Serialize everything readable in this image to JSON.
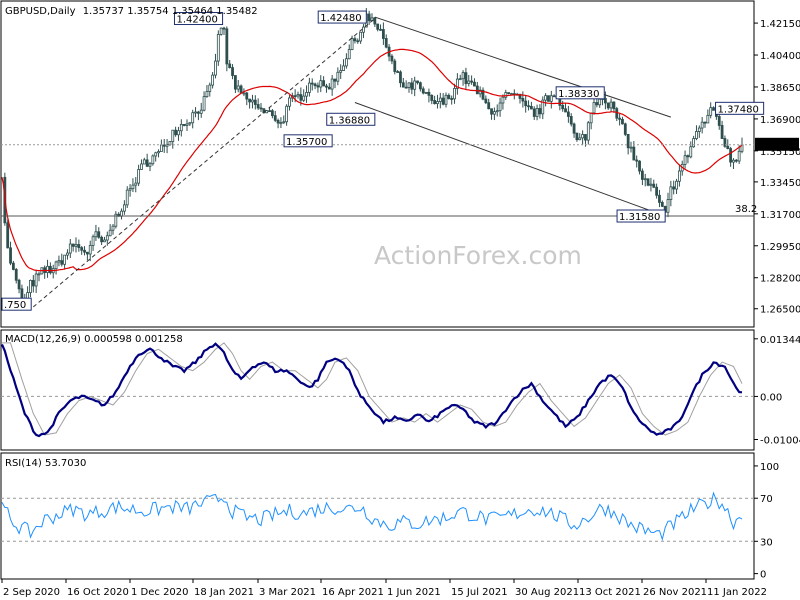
{
  "header": {
    "symbol": "GBPUSD,Daily",
    "ohlc": "1.35737 1.35754 1.35464 1.35482"
  },
  "watermark": "ActionForex.com",
  "colors": {
    "candle": "#2f4f4f",
    "ma": "#dd0000",
    "trend": "#333333",
    "macd": "#000080",
    "signal": "#a0a0a0",
    "rsi": "#1e90ff",
    "grid_dash": "#999999",
    "price_label_bg": "#000000",
    "price_label_fg": "#ffffff"
  },
  "price_axis": {
    "ticks": [
      "1.42150",
      "1.40400",
      "1.38650",
      "1.36900",
      "1.35150",
      "1.33450",
      "1.31700",
      "1.29950",
      "1.28200",
      "1.26500"
    ],
    "current_price": "1.35482",
    "horizontal_line": 1.3158,
    "fib_label": "38.2"
  },
  "annotations": [
    {
      "text": "1.42400",
      "price": 1.424
    },
    {
      "text": "1.42480",
      "price": 1.4248
    },
    {
      "text": "1.36880",
      "price": 1.3688
    },
    {
      "text": "1.35700",
      "price": 1.357
    },
    {
      "text": "1.38330",
      "price": 1.3833
    },
    {
      "text": "1.37480",
      "price": 1.3748
    },
    {
      "text": "1.31580",
      "price": 1.3158
    },
    {
      "text": ".750",
      "price": 1.2675
    }
  ],
  "macd_panel": {
    "label": "MACD(12,26,9) 0.000598 0.001258",
    "ticks": [
      "0.013448",
      "0.00",
      "-0.010047"
    ]
  },
  "rsi_panel": {
    "label": "RSI(14) 53.7030",
    "ticks": [
      "100",
      "70",
      "30",
      "0"
    ]
  },
  "date_axis": {
    "labels": [
      "2 Sep 2020",
      "16 Oct 2020",
      "1 Dec 2020",
      "18 Jan 2021",
      "3 Mar 2021",
      "16 Apr 2021",
      "1 Jun 2021",
      "15 Jul 2021",
      "30 Aug 2021",
      "13 Oct 2021",
      "26 Nov 2021",
      "11 Jan 2022"
    ]
  },
  "chart_data": [
    {
      "type": "candlestick",
      "title": "GBPUSD,Daily",
      "ylim": [
        1.265,
        1.43
      ],
      "dates": [
        "2 Sep 2020",
        "16 Oct 2020",
        "1 Dec 2020",
        "18 Jan 2021",
        "3 Mar 2021",
        "16 Apr 2021",
        "1 Jun 2021",
        "15 Jul 2021",
        "30 Aug 2021",
        "13 Oct 2021",
        "26 Nov 2021",
        "11 Jan 2022"
      ],
      "close_path": [
        [
          0,
          1.34
        ],
        [
          3,
          1.3
        ],
        [
          8,
          1.285
        ],
        [
          12,
          1.274
        ],
        [
          16,
          1.2675
        ],
        [
          20,
          1.278
        ],
        [
          28,
          1.285
        ],
        [
          38,
          1.288
        ],
        [
          50,
          1.3
        ],
        [
          60,
          1.296
        ],
        [
          66,
          1.305
        ],
        [
          72,
          1.3
        ],
        [
          80,
          1.315
        ],
        [
          90,
          1.33
        ],
        [
          100,
          1.345
        ],
        [
          110,
          1.35
        ],
        [
          120,
          1.362
        ],
        [
          130,
          1.368
        ],
        [
          140,
          1.376
        ],
        [
          147,
          1.386
        ],
        [
          152,
          1.413
        ],
        [
          155,
          1.424
        ],
        [
          158,
          1.4
        ],
        [
          165,
          1.385
        ],
        [
          172,
          1.379
        ],
        [
          178,
          1.377
        ],
        [
          184,
          1.372
        ],
        [
          190,
          1.372
        ],
        [
          196,
          1.366
        ],
        [
          202,
          1.378
        ],
        [
          210,
          1.382
        ],
        [
          218,
          1.39
        ],
        [
          226,
          1.386
        ],
        [
          232,
          1.389
        ],
        [
          240,
          1.4
        ],
        [
          246,
          1.41
        ],
        [
          252,
          1.417
        ],
        [
          256,
          1.4248
        ],
        [
          262,
          1.42
        ],
        [
          266,
          1.418
        ],
        [
          272,
          1.402
        ],
        [
          278,
          1.392
        ],
        [
          284,
          1.385
        ],
        [
          290,
          1.388
        ],
        [
          296,
          1.383
        ],
        [
          302,
          1.378
        ],
        [
          310,
          1.378
        ],
        [
          316,
          1.383
        ],
        [
          322,
          1.393
        ],
        [
          328,
          1.389
        ],
        [
          336,
          1.382
        ],
        [
          342,
          1.374
        ],
        [
          348,
          1.375
        ],
        [
          355,
          1.382
        ],
        [
          362,
          1.38
        ],
        [
          369,
          1.374
        ],
        [
          376,
          1.372
        ],
        [
          382,
          1.379
        ],
        [
          388,
          1.3833
        ],
        [
          394,
          1.377
        ],
        [
          400,
          1.365
        ],
        [
          404,
          1.356
        ],
        [
          410,
          1.36
        ],
        [
          416,
          1.378
        ],
        [
          422,
          1.382
        ],
        [
          428,
          1.376
        ],
        [
          434,
          1.367
        ],
        [
          440,
          1.356
        ],
        [
          446,
          1.344
        ],
        [
          452,
          1.334
        ],
        [
          458,
          1.33
        ],
        [
          462,
          1.322
        ],
        [
          466,
          1.3158
        ],
        [
          470,
          1.33
        ],
        [
          476,
          1.34
        ],
        [
          482,
          1.35
        ],
        [
          488,
          1.362
        ],
        [
          494,
          1.368
        ],
        [
          500,
          1.3748
        ],
        [
          504,
          1.365
        ],
        [
          508,
          1.355
        ],
        [
          512,
          1.346
        ],
        [
          516,
          1.348
        ],
        [
          520,
          1.35482
        ]
      ],
      "series": [
        {
          "name": "",
          "kind": "candles"
        },
        {
          "name": "",
          "kind": "moving_average"
        },
        {
          "name": "",
          "kind": "trendlines"
        }
      ],
      "levels": [
        1.424,
        1.4248,
        1.3688,
        1.357,
        1.3833,
        1.3748,
        1.3158
      ],
      "last": 1.35482
    },
    {
      "type": "line",
      "title": "MACD(12,26,9) 0.000598 0.001258",
      "ylim": [
        -0.010047,
        0.013448
      ],
      "series": [
        {
          "name": "",
          "values_path": [
            [
              0,
              0.0125
            ],
            [
              8,
              0.004
            ],
            [
              16,
              -0.004
            ],
            [
              24,
              -0.009
            ],
            [
              32,
              -0.0085
            ],
            [
              40,
              -0.004
            ],
            [
              48,
              -0.001
            ],
            [
              56,
              0.0
            ],
            [
              64,
              -0.001
            ],
            [
              72,
              -0.002
            ],
            [
              80,
              0.001
            ],
            [
              88,
              0.006
            ],
            [
              96,
              0.01
            ],
            [
              104,
              0.011
            ],
            [
              112,
              0.009
            ],
            [
              120,
              0.007
            ],
            [
              128,
              0.006
            ],
            [
              136,
              0.008
            ],
            [
              144,
              0.011
            ],
            [
              150,
              0.0125
            ],
            [
              156,
              0.01
            ],
            [
              162,
              0.006
            ],
            [
              168,
              0.004
            ],
            [
              176,
              0.007
            ],
            [
              184,
              0.008
            ],
            [
              192,
              0.006
            ],
            [
              200,
              0.006
            ],
            [
              208,
              0.004
            ],
            [
              216,
              0.002
            ],
            [
              222,
              0.004
            ],
            [
              228,
              0.008
            ],
            [
              236,
              0.009
            ],
            [
              244,
              0.006
            ],
            [
              252,
              0.0
            ],
            [
              260,
              -0.003
            ],
            [
              268,
              -0.006
            ],
            [
              276,
              -0.005
            ],
            [
              284,
              -0.006
            ],
            [
              292,
              -0.004
            ],
            [
              300,
              -0.006
            ],
            [
              308,
              -0.004
            ],
            [
              316,
              -0.002
            ],
            [
              324,
              -0.003
            ],
            [
              332,
              -0.006
            ],
            [
              340,
              -0.007
            ],
            [
              348,
              -0.006
            ],
            [
              356,
              -0.002
            ],
            [
              364,
              0.001
            ],
            [
              372,
              0.003
            ],
            [
              380,
              -0.001
            ],
            [
              388,
              -0.004
            ],
            [
              396,
              -0.007
            ],
            [
              404,
              -0.005
            ],
            [
              412,
              -0.001
            ],
            [
              420,
              0.003
            ],
            [
              428,
              0.005
            ],
            [
              436,
              0.002
            ],
            [
              444,
              -0.004
            ],
            [
              452,
              -0.007
            ],
            [
              460,
              -0.009
            ],
            [
              468,
              -0.008
            ],
            [
              476,
              -0.006
            ],
            [
              484,
              0.0
            ],
            [
              492,
              0.005
            ],
            [
              500,
              0.008
            ],
            [
              508,
              0.007
            ],
            [
              514,
              0.003
            ],
            [
              520,
              0.000598
            ]
          ]
        },
        {
          "name": "",
          "lag": 6
        }
      ]
    },
    {
      "type": "line",
      "title": "RSI(14) 53.7030",
      "ylim": [
        0,
        100
      ],
      "series": [
        {
          "name": "",
          "values_path": [
            [
              0,
              62
            ],
            [
              10,
              45
            ],
            [
              20,
              38
            ],
            [
              30,
              50
            ],
            [
              40,
              55
            ],
            [
              50,
              60
            ],
            [
              60,
              55
            ],
            [
              70,
              58
            ],
            [
              80,
              62
            ],
            [
              90,
              60
            ],
            [
              100,
              58
            ],
            [
              110,
              60
            ],
            [
              120,
              62
            ],
            [
              130,
              60
            ],
            [
              140,
              65
            ],
            [
              150,
              68
            ],
            [
              156,
              72
            ],
            [
              162,
              58
            ],
            [
              172,
              52
            ],
            [
              182,
              50
            ],
            [
              192,
              55
            ],
            [
              202,
              58
            ],
            [
              212,
              56
            ],
            [
              222,
              60
            ],
            [
              232,
              62
            ],
            [
              242,
              60
            ],
            [
              252,
              62
            ],
            [
              262,
              50
            ],
            [
              272,
              45
            ],
            [
              282,
              48
            ],
            [
              292,
              46
            ],
            [
              302,
              50
            ],
            [
              312,
              52
            ],
            [
              322,
              58
            ],
            [
              332,
              54
            ],
            [
              342,
              50
            ],
            [
              352,
              52
            ],
            [
              362,
              56
            ],
            [
              372,
              60
            ],
            [
              382,
              58
            ],
            [
              392,
              52
            ],
            [
              402,
              45
            ],
            [
              412,
              52
            ],
            [
              422,
              62
            ],
            [
              432,
              55
            ],
            [
              442,
              45
            ],
            [
              452,
              40
            ],
            [
              462,
              36
            ],
            [
              468,
              42
            ],
            [
              476,
              50
            ],
            [
              486,
              60
            ],
            [
              496,
              66
            ],
            [
              502,
              70
            ],
            [
              508,
              62
            ],
            [
              514,
              48
            ],
            [
              520,
              53.7
            ]
          ]
        }
      ],
      "levels": [
        70,
        30
      ]
    }
  ]
}
